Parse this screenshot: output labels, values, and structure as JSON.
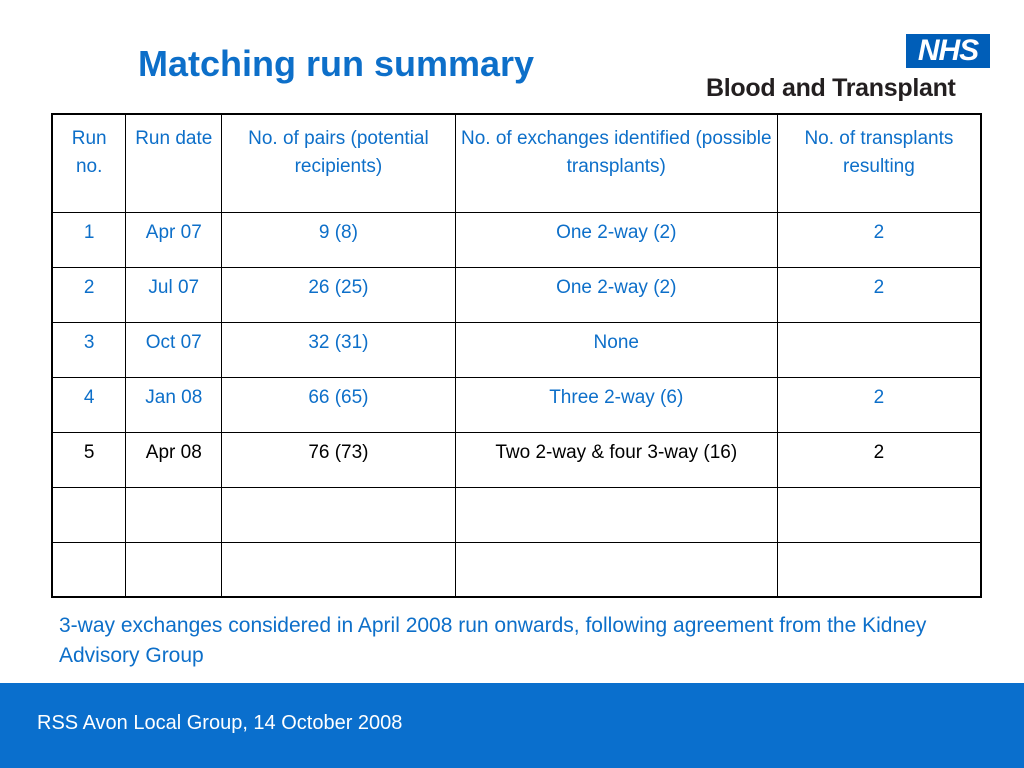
{
  "slide": {
    "title": "Matching run summary",
    "logo": {
      "badge": "NHS",
      "subtitle": "Blood and Transplant"
    },
    "table": {
      "headers": [
        "Run no.",
        "Run date",
        "No. of pairs (potential recipients)",
        "No. of exchanges identified (possible transplants)",
        "No. of transplants resulting"
      ],
      "rows": [
        [
          "1",
          "Apr 07",
          "9 (8)",
          "One 2-way (2)",
          "2"
        ],
        [
          "2",
          "Jul 07",
          "26 (25)",
          "One 2-way (2)",
          "2"
        ],
        [
          "3",
          "Oct 07",
          "32 (31)",
          "None",
          ""
        ],
        [
          "4",
          "Jan 08",
          "66 (65)",
          "Three 2-way (6)",
          "2"
        ],
        [
          "5",
          "Apr 08",
          "76 (73)",
          "Two 2-way & four 3-way (16)",
          "2"
        ],
        [
          "",
          "",
          "",
          "",
          ""
        ],
        [
          "",
          "",
          "",
          "",
          ""
        ]
      ]
    },
    "note": "3-way exchanges considered in April 2008 run onwards, following agreement from the Kidney Advisory Group",
    "footer": "RSS Avon Local Group, 14 October 2008",
    "colors": {
      "accent": "#0d6fc9",
      "footer_bg": "#0a6fcd",
      "nhs_blue": "#005eb8"
    }
  }
}
